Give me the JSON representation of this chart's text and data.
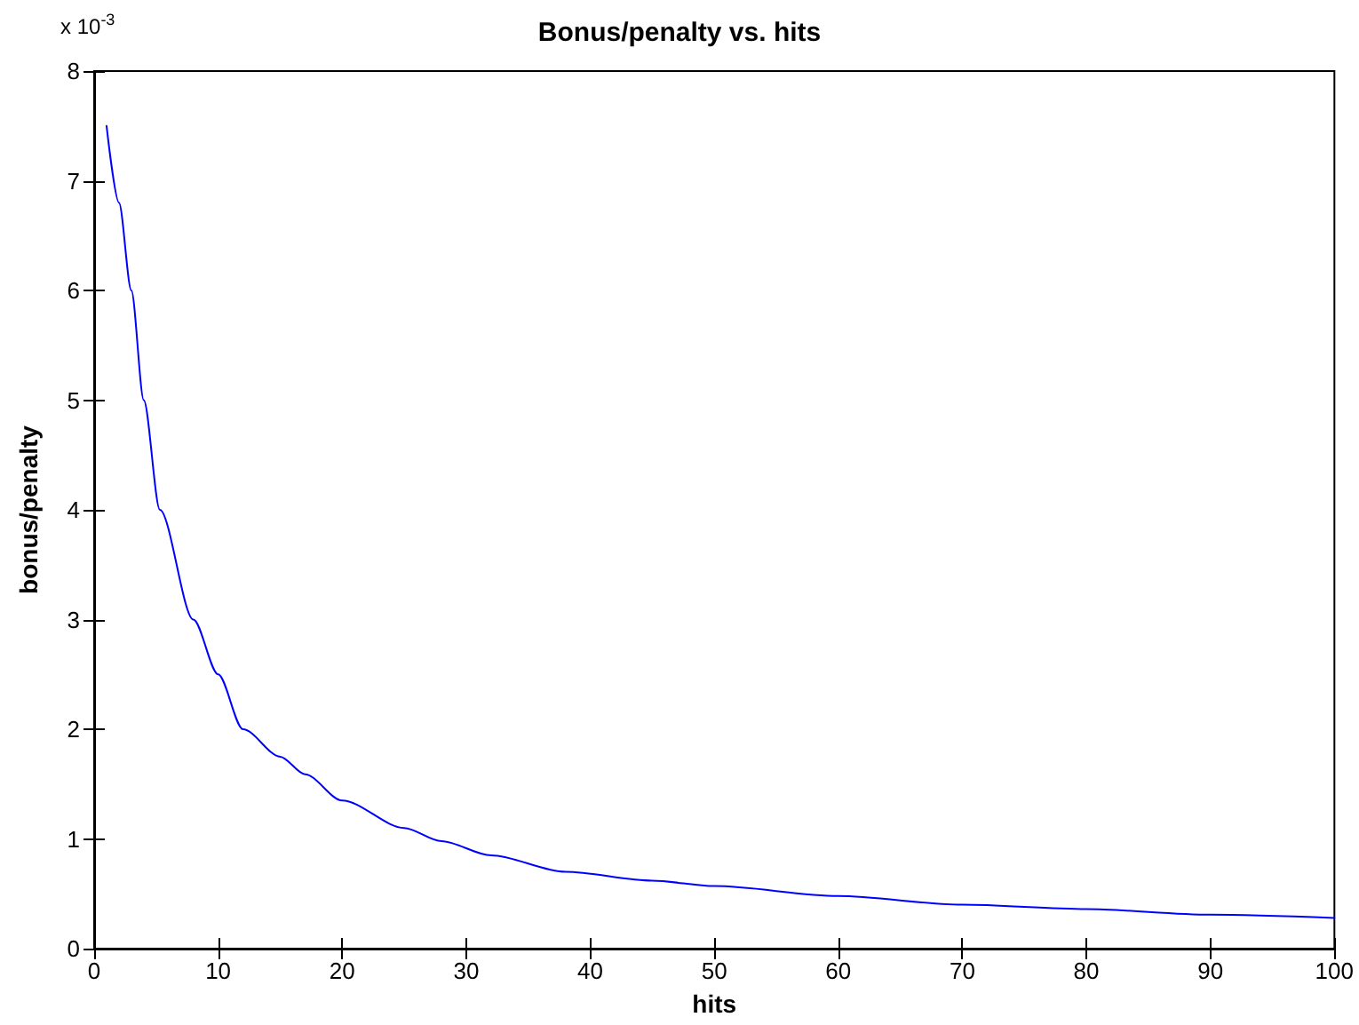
{
  "chart_data": {
    "type": "line",
    "title": "Bonus/penalty vs. hits",
    "xlabel": "hits",
    "ylabel": "bonus/penalty",
    "annotations": [
      "x 10$^{-3}$"
    ],
    "x": [
      1,
      2,
      3,
      4,
      5.3,
      8,
      10,
      12,
      15,
      17,
      20,
      25,
      28,
      32,
      38,
      45,
      50,
      60,
      70,
      80,
      90,
      100
    ],
    "series": [
      {
        "color": "#0000ff",
        "values": [
          7.5,
          6.8,
          6.0,
          5.0,
          4.0,
          3.0,
          2.5,
          2.0,
          1.75,
          1.59,
          1.35,
          1.1,
          0.98,
          0.85,
          0.7,
          0.62,
          0.57,
          0.48,
          0.4,
          0.36,
          0.31,
          0.28
        ]
      }
    ],
    "xlim": [
      0,
      100
    ],
    "xticks": [
      0,
      10,
      20,
      30,
      40,
      50,
      60,
      70,
      80,
      90,
      100
    ],
    "ylim": [
      0,
      8
    ],
    "yticks": [
      0,
      1,
      2,
      3,
      4,
      5,
      6,
      7,
      8
    ],
    "grid": false,
    "marker": "none",
    "line_style": "solid"
  }
}
